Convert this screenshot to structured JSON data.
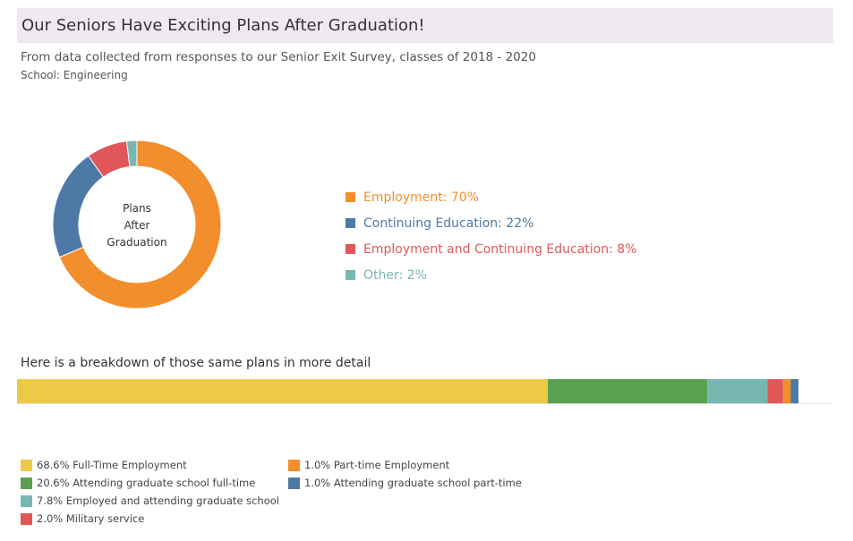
{
  "header": {
    "title": "Our Seniors Have Exciting Plans After Graduation!",
    "subtitle": "From data collected from responses to our Senior Exit Survey, classes of 2018 - 2020",
    "school": "School: Engineering"
  },
  "donut": {
    "center_line1": "Plans",
    "center_line2": "After",
    "center_line3": "Graduation"
  },
  "detail": {
    "heading": "Here is a breakdown of those same plans in more detail"
  },
  "chart_data": [
    {
      "type": "pie",
      "variant": "donut",
      "title": "Plans After Graduation",
      "categories": [
        "Employment",
        "Continuing Education",
        "Employment and Continuing Education",
        "Other"
      ],
      "values": [
        70,
        22,
        8,
        2
      ],
      "colors": [
        "#f28e2b",
        "#4e79a7",
        "#e15759",
        "#76b7b2"
      ],
      "legend_labels": [
        "Employment: 70%",
        "Continuing Education: 22%",
        "Employment and Continuing Education: 8%",
        "Other: 2%"
      ],
      "legend_position": "right"
    },
    {
      "type": "bar",
      "variant": "stacked-horizontal",
      "title": "Here is a breakdown of those same plans in more detail",
      "categories": [
        "Full-Time Employment",
        "Attending graduate school full-time",
        "Employed and attending graduate school",
        "Military service",
        "Part-time Employment",
        "Attending graduate school part-time"
      ],
      "values": [
        68.6,
        20.6,
        7.8,
        2.0,
        1.0,
        1.0
      ],
      "colors": [
        "#edc948",
        "#59a14f",
        "#76b7b2",
        "#e15759",
        "#f28e2b",
        "#4e79a7"
      ],
      "legend_labels": [
        "68.6% Full-Time Employment",
        "20.6% Attending graduate school full-time",
        "7.8% Employed and attending graduate school",
        "2.0% Military service",
        "1.0% Part-time Employment",
        "1.0% Attending graduate school part-time"
      ],
      "xlim": [
        0,
        105.5
      ],
      "legend_position": "bottom"
    }
  ]
}
